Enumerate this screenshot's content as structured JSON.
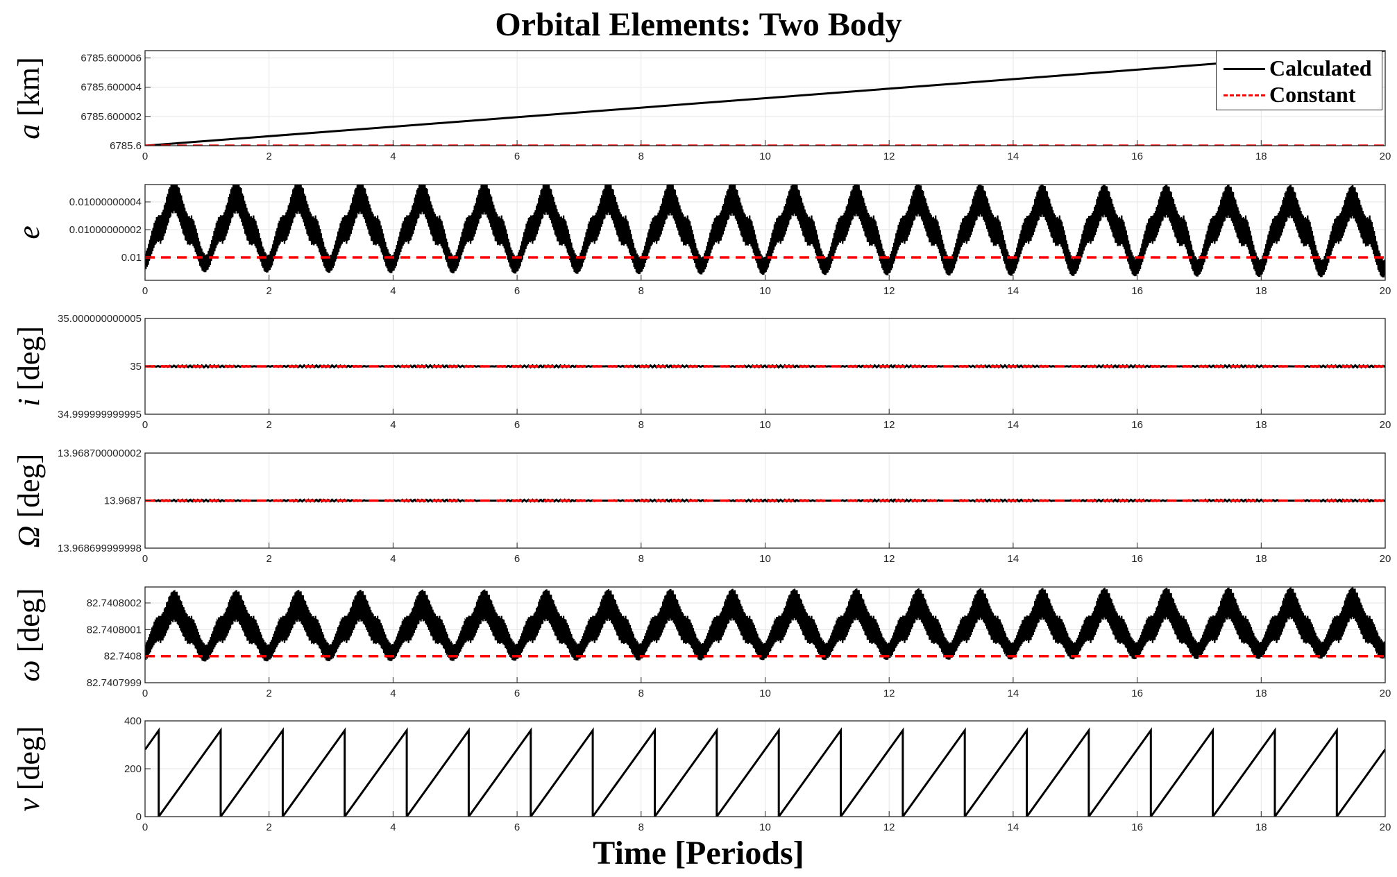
{
  "figure": {
    "title": "Orbital Elements: Two Body",
    "xlabel": "Time [Periods]"
  },
  "legend": [
    {
      "name": "Calculated",
      "color": "#000000",
      "style": "solid"
    },
    {
      "name": "Constant",
      "color": "#ff0000",
      "style": "dashed"
    }
  ],
  "chart_data": [
    {
      "type": "line",
      "id": "a",
      "ylabel_symbol": "a",
      "ylabel_unit": "[km]",
      "xlim": [
        0,
        20
      ],
      "ylim": [
        6785.6,
        6785.6000065
      ],
      "xticks": [
        "0",
        "2",
        "4",
        "6",
        "8",
        "10",
        "12",
        "14",
        "16",
        "18",
        "20"
      ],
      "yticks": [
        {
          "value": 6785.6,
          "label": "6785.6"
        },
        {
          "value": 6785.600002,
          "label": "6785.600002"
        },
        {
          "value": 6785.600004,
          "label": "6785.600004"
        },
        {
          "value": 6785.600006,
          "label": "6785.600006"
        }
      ],
      "grid": true,
      "legend_placement": "top-right",
      "series": [
        {
          "name": "Calculated",
          "color": "#000000",
          "style": "solid",
          "x": [
            0,
            20
          ],
          "y": [
            6785.6,
            6785.6000065
          ],
          "osc_amp": 0
        },
        {
          "name": "Constant",
          "color": "#ff0000",
          "style": "dashed",
          "x": [
            0,
            20
          ],
          "y": [
            6785.6,
            6785.6
          ]
        }
      ]
    },
    {
      "type": "line",
      "id": "e",
      "ylabel_symbol": "e",
      "ylabel_unit": "",
      "xlim": [
        0,
        20
      ],
      "ylim": [
        0.0099999999835,
        0.0100000000525
      ],
      "xticks": [
        "0",
        "2",
        "4",
        "6",
        "8",
        "10",
        "12",
        "14",
        "16",
        "18",
        "20"
      ],
      "yticks": [
        {
          "value": 0.01,
          "label": "0.01"
        },
        {
          "value": 0.01000000002,
          "label": "0.01000000002"
        },
        {
          "value": 0.01000000004,
          "label": "0.01000000004"
        }
      ],
      "grid": true,
      "series": [
        {
          "name": "Calculated",
          "color": "#000000",
          "style": "solid",
          "pattern": "envelope",
          "base": 0.01000000002,
          "env_amp": 2.5e-11,
          "env_drift": -4e-12,
          "inner_amp": 1.2e-11
        },
        {
          "name": "Constant",
          "color": "#ff0000",
          "style": "dashed",
          "x": [
            0,
            20
          ],
          "y": [
            0.01,
            0.01
          ]
        }
      ]
    },
    {
      "type": "line",
      "id": "i",
      "ylabel_symbol": "i",
      "ylabel_unit": "[deg]",
      "xlim": [
        0,
        20
      ],
      "ylim": [
        34.999999999995,
        35.000000000005
      ],
      "xticks": [
        "0",
        "2",
        "4",
        "6",
        "8",
        "10",
        "12",
        "14",
        "16",
        "18",
        "20"
      ],
      "yticks": [
        {
          "value": 34.999999999995,
          "label": "34.999999999995"
        },
        {
          "value": 35,
          "label": "35"
        },
        {
          "value": 35.000000000005,
          "label": "35.000000000005"
        }
      ],
      "grid": true,
      "series": [
        {
          "name": "Calculated",
          "color": "#000000",
          "style": "solid",
          "pattern": "flat",
          "base": 35,
          "noise": 1e-13
        },
        {
          "name": "Constant",
          "color": "#ff0000",
          "style": "dashed",
          "x": [
            0,
            20
          ],
          "y": [
            35,
            35
          ]
        }
      ]
    },
    {
      "type": "line",
      "id": "Omega",
      "ylabel_symbol": "Ω",
      "ylabel_unit": "[deg]",
      "xlim": [
        0,
        20
      ],
      "ylim": [
        13.9686999999998,
        13.9687000000002
      ],
      "xticks": [
        "0",
        "2",
        "4",
        "6",
        "8",
        "10",
        "12",
        "14",
        "16",
        "18",
        "20"
      ],
      "yticks": [
        {
          "value": 13.9686999999998,
          "label": "13.968699999998"
        },
        {
          "value": 13.9687,
          "label": "13.9687"
        },
        {
          "value": 13.9687000000002,
          "label": "13.968700000002"
        }
      ],
      "grid": true,
      "series": [
        {
          "name": "Calculated",
          "color": "#000000",
          "style": "solid",
          "pattern": "flat",
          "base": 13.9687,
          "noise": 4e-15
        },
        {
          "name": "Constant",
          "color": "#ff0000",
          "style": "dashed",
          "x": [
            0,
            20
          ],
          "y": [
            13.9687,
            13.9687
          ]
        }
      ]
    },
    {
      "type": "line",
      "id": "omega",
      "ylabel_symbol": "ω",
      "ylabel_unit": "[deg]",
      "xlim": [
        0,
        20
      ],
      "ylim": [
        82.7407999,
        82.74080026
      ],
      "xticks": [
        "0",
        "2",
        "4",
        "6",
        "8",
        "10",
        "12",
        "14",
        "16",
        "18",
        "20"
      ],
      "yticks": [
        {
          "value": 82.7407999,
          "label": "82.7407999"
        },
        {
          "value": 82.7408,
          "label": "82.7408"
        },
        {
          "value": 82.7408001,
          "label": "82.7408001"
        },
        {
          "value": 82.7408002,
          "label": "82.7408002"
        }
      ],
      "grid": true,
      "series": [
        {
          "name": "Calculated",
          "color": "#000000",
          "style": "solid",
          "pattern": "envelope",
          "base": 82.7408001,
          "env_amp": 9.2e-08,
          "env_drift": 1.2e-08,
          "inner_amp": 6e-08
        },
        {
          "name": "Constant",
          "color": "#ff0000",
          "style": "dashed",
          "x": [
            0,
            20
          ],
          "y": [
            82.7408,
            82.7408
          ]
        }
      ]
    },
    {
      "type": "line",
      "id": "nu",
      "ylabel_symbol": "ν",
      "ylabel_unit": "[deg]",
      "xlim": [
        0,
        20
      ],
      "ylim": [
        0,
        400
      ],
      "xticks": [
        "0",
        "2",
        "4",
        "6",
        "8",
        "10",
        "12",
        "14",
        "16",
        "18",
        "20"
      ],
      "yticks": [
        {
          "value": 0,
          "label": "0"
        },
        {
          "value": 200,
          "label": "200"
        },
        {
          "value": 400,
          "label": "400"
        }
      ],
      "grid": true,
      "series": [
        {
          "name": "Calculated",
          "color": "#000000",
          "style": "solid",
          "pattern": "sawtooth",
          "start": 280,
          "max": 360,
          "period": 1,
          "first_wrap": 0.22
        }
      ]
    }
  ]
}
